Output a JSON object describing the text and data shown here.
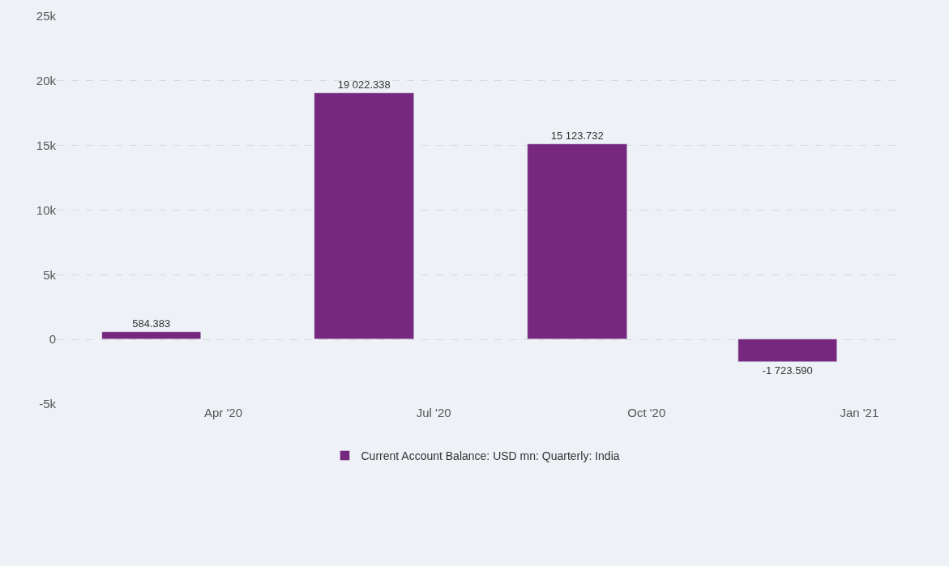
{
  "chart_data": {
    "type": "bar",
    "x": [
      "2020-03",
      "2020-06",
      "2020-09",
      "2020-12"
    ],
    "series": [
      {
        "name": "Current Account Balance: USD mn: Quarterly: India",
        "color": "#76287e",
        "values": [
          584.383,
          19022.338,
          15123.732,
          -1723.59
        ],
        "value_labels": [
          "584.383",
          "19 022.338",
          "15 123.732",
          "-1 723.590"
        ]
      }
    ],
    "xlim": [
      "2020-01-20",
      "2021-01-17"
    ],
    "xticks": [
      {
        "value": "2020-04-01",
        "label": "Apr '20"
      },
      {
        "value": "2020-07-01",
        "label": "Jul '20"
      },
      {
        "value": "2020-10-01",
        "label": "Oct '20"
      },
      {
        "value": "2021-01-01",
        "label": "Jan '21"
      }
    ],
    "ylim": [
      -5000,
      25000
    ],
    "yticks": [
      {
        "value": -5000,
        "label": "-5k"
      },
      {
        "value": 0,
        "label": "0"
      },
      {
        "value": 5000,
        "label": "5k"
      },
      {
        "value": 10000,
        "label": "10k"
      },
      {
        "value": 15000,
        "label": "15k"
      },
      {
        "value": 20000,
        "label": "20k"
      },
      {
        "value": 25000,
        "label": "25k"
      }
    ],
    "grid": "y",
    "legend": "bottom"
  }
}
